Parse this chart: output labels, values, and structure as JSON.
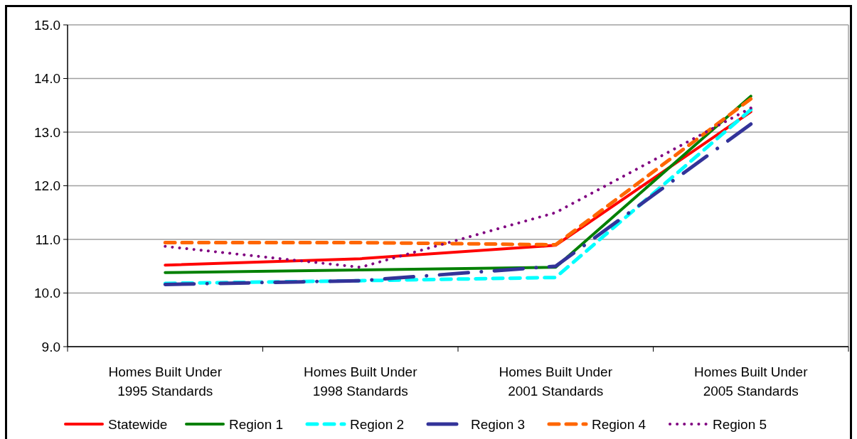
{
  "chart_data": {
    "type": "line",
    "categories": [
      "Homes Built Under 1995 Standards",
      "Homes Built Under 1998 Standards",
      "Homes Built Under 2001 Standards",
      "Homes Built Under 2005 Standards"
    ],
    "series": [
      {
        "name": "Statewide",
        "color": "#ff0000",
        "line_style": "solid",
        "values": [
          10.52,
          10.64,
          10.89,
          13.38
        ]
      },
      {
        "name": "Region 1",
        "color": "#008000",
        "line_style": "solid",
        "values": [
          10.38,
          10.43,
          10.48,
          13.67
        ]
      },
      {
        "name": "Region 2",
        "color": "#00ffff",
        "line_style": "dashed",
        "values": [
          10.18,
          10.23,
          10.29,
          13.42
        ]
      },
      {
        "name": "Region 3",
        "color": "#333399",
        "line_style": "dashdot",
        "values": [
          10.16,
          10.23,
          10.5,
          13.15
        ]
      },
      {
        "name": "Region 4",
        "color": "#ff6600",
        "line_style": "dashed",
        "values": [
          10.94,
          10.94,
          10.9,
          13.62
        ]
      },
      {
        "name": "Region 5",
        "color": "#800080",
        "line_style": "dotted",
        "values": [
          10.87,
          10.48,
          11.5,
          13.45
        ]
      }
    ],
    "ylim": [
      9,
      15
    ],
    "yticks": [
      {
        "value": 9,
        "label": "9.0"
      },
      {
        "value": 10,
        "label": "10.0"
      },
      {
        "value": 11,
        "label": "11.0"
      },
      {
        "value": 12,
        "label": "12.0"
      },
      {
        "value": 13,
        "label": "13.0"
      },
      {
        "value": 14,
        "label": "14.0"
      },
      {
        "value": 15,
        "label": "15.0"
      }
    ],
    "grid": "y",
    "legend": "bottom",
    "marker": "none"
  }
}
